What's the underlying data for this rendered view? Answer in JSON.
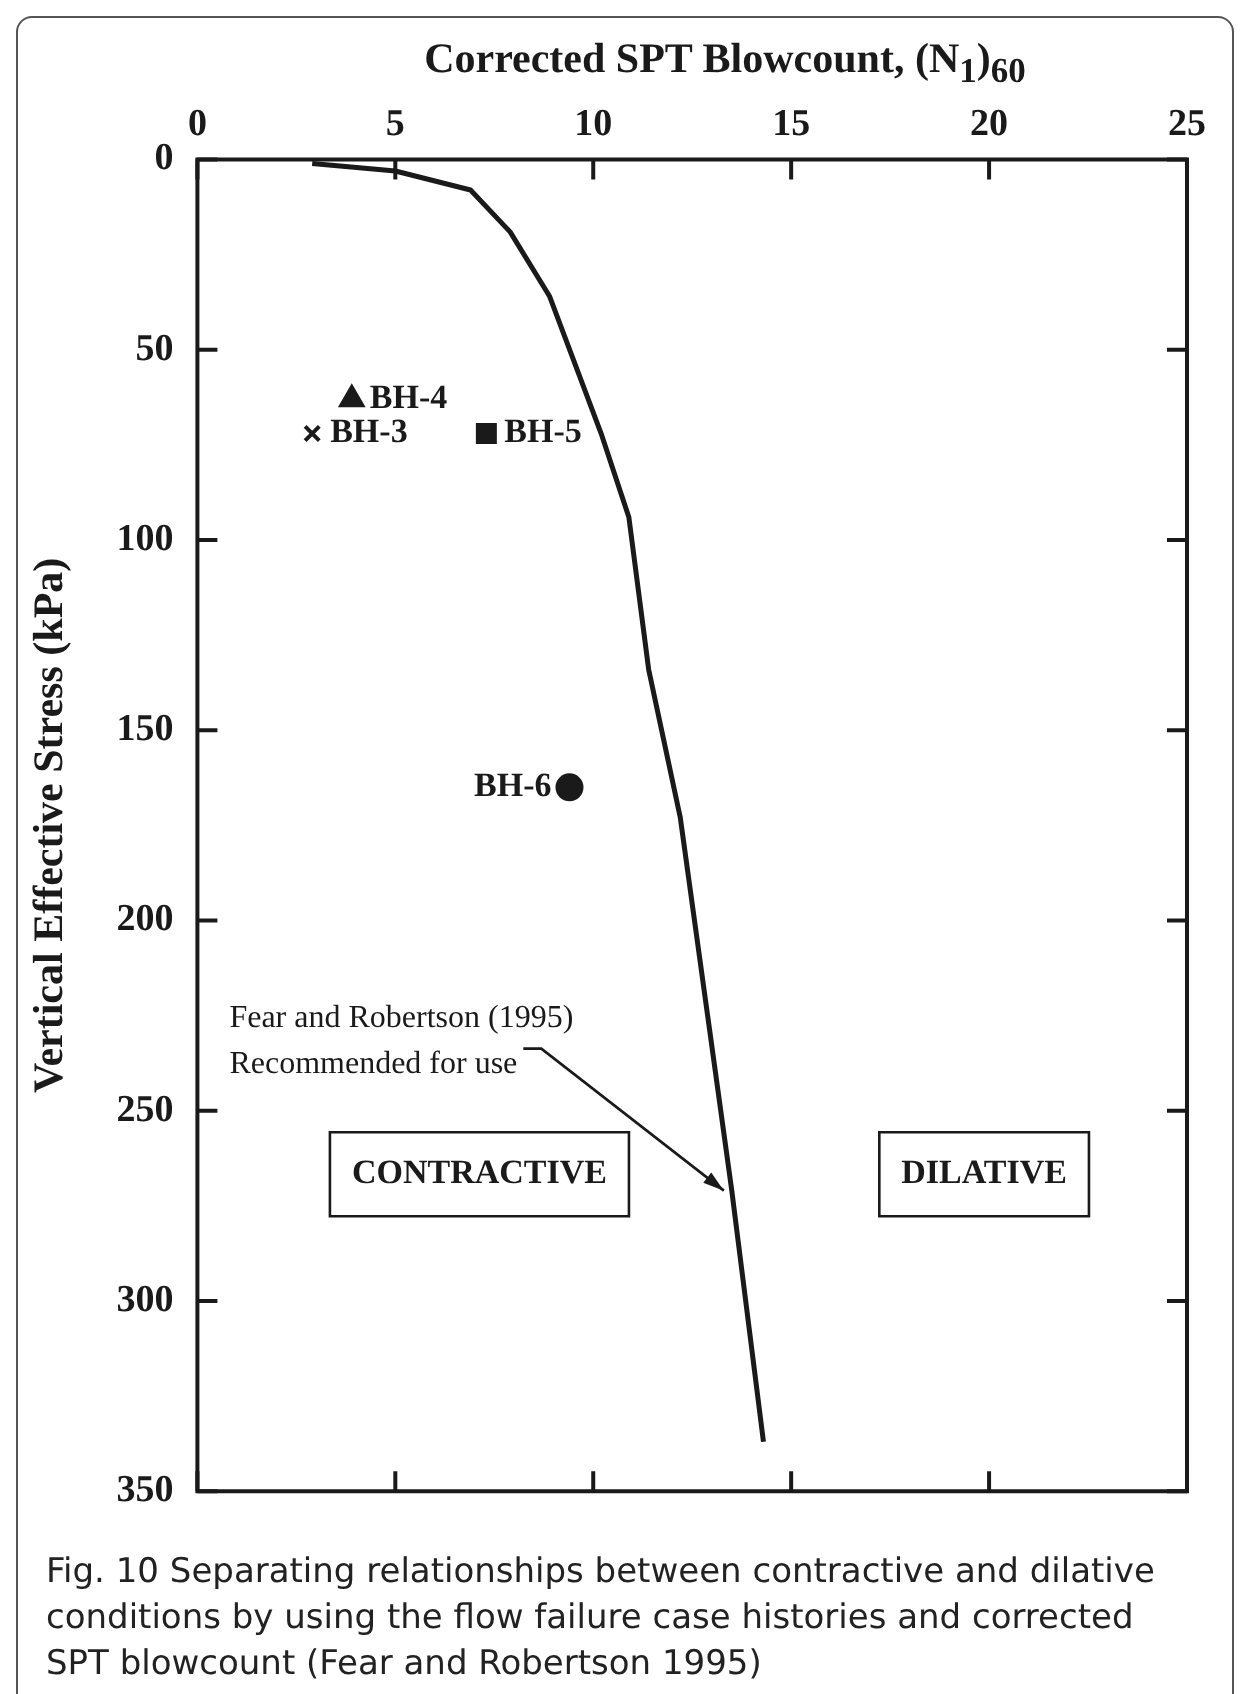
{
  "chart_data": {
    "type": "line",
    "xlabel": "Corrected SPT Blowcount, (N$_{1}$)$_{60}$",
    "ylabel": "Vertical Effective Stress (kPa)",
    "xlim": [
      0,
      25
    ],
    "xticks": [
      0,
      5,
      10,
      15,
      20,
      25
    ],
    "ylim": [
      350,
      0
    ],
    "yticks": [
      0,
      50,
      100,
      150,
      200,
      250,
      300,
      350
    ],
    "grid": false,
    "legend": false,
    "series": [
      {
        "type": "line",
        "color": "#1a1a1a",
        "marker": "none",
        "x": [
          2.9,
          5,
          6.9,
          7.9,
          8.9,
          10.2,
          10.9,
          11.4,
          12.2,
          13.5,
          14.3
        ],
        "values": [
          1,
          3,
          8,
          19,
          36,
          72,
          94,
          134,
          173,
          271,
          337
        ]
      },
      {
        "type": "scatter",
        "name": "BH-4",
        "color": "#1a1a1a",
        "marker": "triangle",
        "x": [
          3.9
        ],
        "values": [
          63
        ]
      },
      {
        "type": "scatter",
        "name": "BH-3",
        "color": "#1a1a1a",
        "marker": "cross",
        "x": [
          2.9
        ],
        "values": [
          72
        ]
      },
      {
        "type": "scatter",
        "name": "BH-5",
        "color": "#1a1a1a",
        "marker": "square",
        "x": [
          7.3
        ],
        "values": [
          72
        ]
      },
      {
        "type": "scatter",
        "name": "BH-6",
        "color": "#1a1a1a",
        "marker": "circle",
        "x": [
          9.4
        ],
        "values": [
          165
        ]
      }
    ],
    "annotations": [
      {
        "text": "Fear and Robertson (1995)\nRecommended for use",
        "x": 13.3,
        "y": 271
      },
      "CONTRACTIVE",
      "DILATIVE",
      "Fig. 10 Separating relationships between contractive and dilative conditions by using the flow failure case histories and corrected SPT blowcount (Fear and Robertson 1995)"
    ]
  }
}
